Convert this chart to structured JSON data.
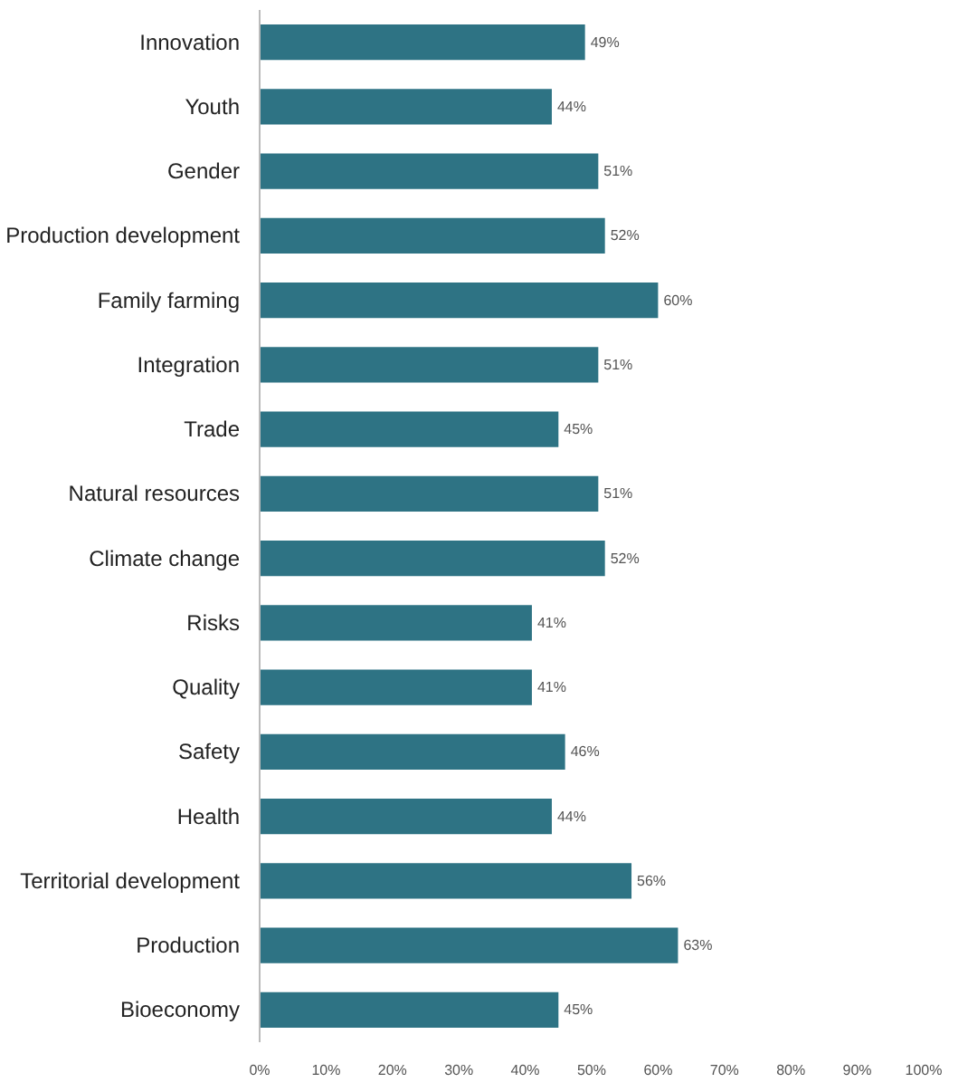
{
  "chart_data": {
    "type": "bar",
    "orientation": "horizontal",
    "categories": [
      "Innovation",
      "Youth",
      "Gender",
      "Production development",
      "Family farming",
      "Integration",
      "Trade",
      "Natural resources",
      "Climate change",
      "Risks",
      "Quality",
      "Safety",
      "Health",
      "Territorial development",
      "Production",
      "Bioeconomy"
    ],
    "values": [
      49,
      44,
      51,
      52,
      60,
      51,
      45,
      51,
      52,
      41,
      41,
      46,
      44,
      56,
      63,
      45
    ],
    "value_labels": [
      "49%",
      "44%",
      "51%",
      "52%",
      "60%",
      "51%",
      "45%",
      "51%",
      "52%",
      "41%",
      "41%",
      "46%",
      "44%",
      "56%",
      "63%",
      "45%"
    ],
    "color": "#2e7384",
    "xlim": [
      0,
      100
    ],
    "xticks": [
      {
        "value": 0,
        "label": "0%"
      },
      {
        "value": 10,
        "label": "10%"
      },
      {
        "value": 20,
        "label": "20%"
      },
      {
        "value": 30,
        "label": "30%"
      },
      {
        "value": 40,
        "label": "40%"
      },
      {
        "value": 50,
        "label": "50%"
      },
      {
        "value": 60,
        "label": "60%"
      },
      {
        "value": 70,
        "label": "70%"
      },
      {
        "value": 80,
        "label": "80%"
      },
      {
        "value": 90,
        "label": "90%"
      },
      {
        "value": 100,
        "label": "100%"
      }
    ],
    "grid": false
  }
}
